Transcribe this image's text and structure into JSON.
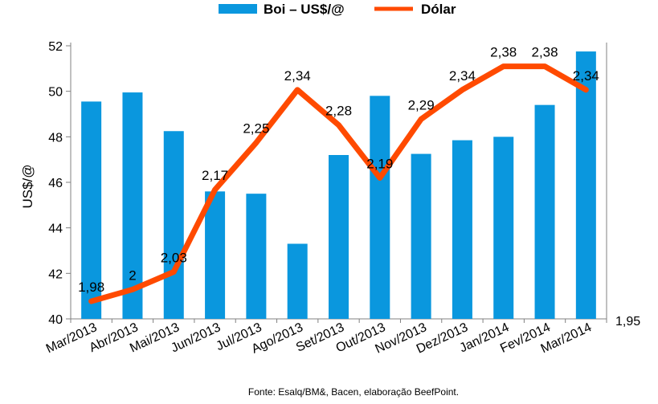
{
  "chart_data": {
    "type": "bar+line",
    "title": "",
    "categories": [
      "Mar/2013",
      "Abr/2013",
      "Mai/2013",
      "Jun/2013",
      "Jul/2013",
      "Ago/2013",
      "Set/2013",
      "Out/2013",
      "Nov/2013",
      "Dez/2013",
      "Jan/2014",
      "Fev/2014",
      "Mar/2014"
    ],
    "series": [
      {
        "name": "Boi – US$/@",
        "type": "bar",
        "axis": "left",
        "color": "#0a97de",
        "values": [
          49.55,
          49.95,
          48.25,
          45.6,
          45.5,
          43.3,
          47.2,
          49.8,
          47.25,
          47.85,
          48.0,
          49.4,
          51.75
        ]
      },
      {
        "name": "Dólar",
        "type": "line",
        "axis": "right",
        "color": "#ff4a00",
        "values": [
          1.98,
          2,
          2.03,
          2.17,
          2.25,
          2.34,
          2.28,
          2.19,
          2.29,
          2.34,
          2.38,
          2.38,
          2.34
        ],
        "labels": [
          "1,98",
          "2",
          "2,03",
          "2,17",
          "2,25",
          "2,34",
          "2,28",
          "2,19",
          "2,29",
          "2,34",
          "2,38",
          "2,38",
          "2,34"
        ]
      }
    ],
    "ylabel": "US$/@",
    "ylim": [
      40,
      52
    ],
    "yticks": [
      "40",
      "42",
      "44",
      "46",
      "48",
      "50",
      "52"
    ],
    "y2_label_visible": "1,95",
    "legend_position": "top",
    "grid": false,
    "source": "Fonte: Esalq/BM&, Bacen, elaboração BeefPoint."
  }
}
